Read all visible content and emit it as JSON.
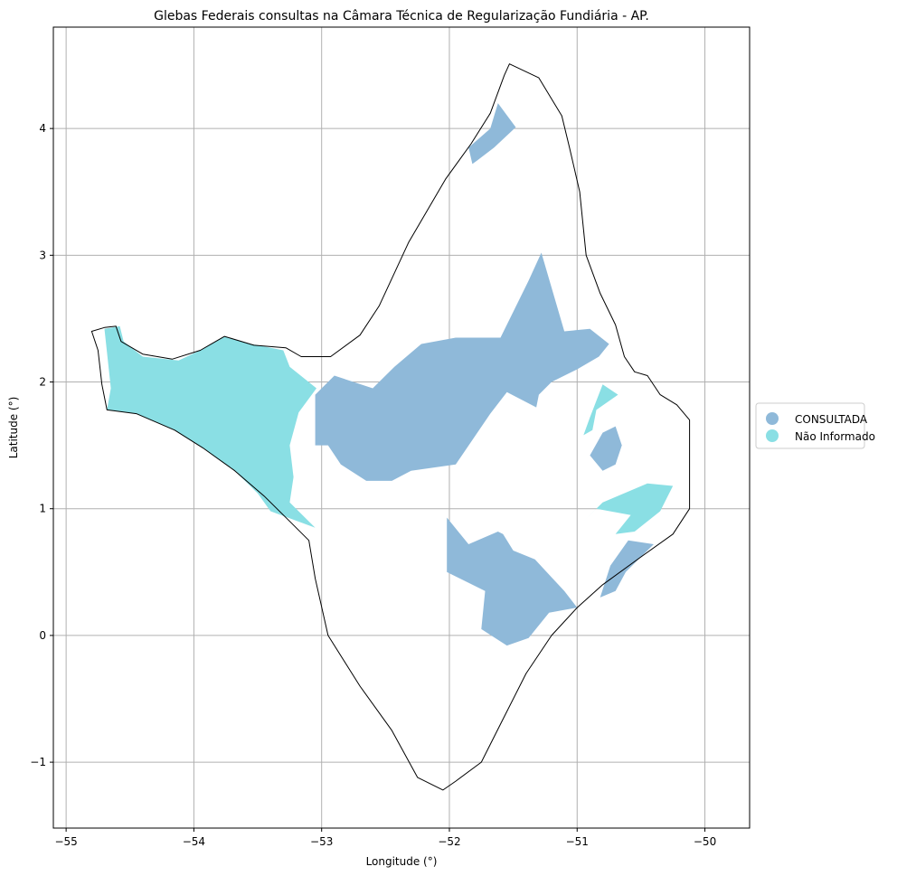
{
  "title": "Glebas Federais consultas na Câmara Técnica de Regularização Fundiária - AP.",
  "xlabel": "Longitude (°)",
  "ylabel": "Latitude (°)",
  "x_ticks": [
    "−55",
    "−54",
    "−53",
    "−52",
    "−51",
    "−50"
  ],
  "y_ticks": [
    "4",
    "3",
    "2",
    "1",
    "0",
    "−1"
  ],
  "legend": [
    {
      "label": "CONSULTADA",
      "color": "#8fb9d9"
    },
    {
      "label": "Não Informado",
      "color": "#8adfe4"
    }
  ],
  "chart_data": {
    "type": "map",
    "xlabel": "Longitude (°)",
    "ylabel": "Latitude (°)",
    "xlim": [
      -55.1,
      -49.65
    ],
    "ylim": [
      -1.52,
      4.8
    ],
    "grid": true,
    "legend_position": "right",
    "categories": [
      "CONSULTADA",
      "Não Informado"
    ],
    "colors": {
      "CONSULTADA": "#8fb9d9",
      "Não Informado": "#8adfe4",
      "outline": "#000000"
    },
    "boundary": [
      [
        -54.7,
        2.43
      ],
      [
        -54.61,
        2.44
      ],
      [
        -54.57,
        2.32
      ],
      [
        -54.4,
        2.22
      ],
      [
        -54.17,
        2.18
      ],
      [
        -53.95,
        2.25
      ],
      [
        -53.76,
        2.36
      ],
      [
        -53.53,
        2.29
      ],
      [
        -53.28,
        2.27
      ],
      [
        -53.16,
        2.2
      ],
      [
        -52.93,
        2.2
      ],
      [
        -52.7,
        2.37
      ],
      [
        -52.55,
        2.6
      ],
      [
        -52.32,
        3.1
      ],
      [
        -52.03,
        3.6
      ],
      [
        -51.83,
        3.88
      ],
      [
        -51.68,
        4.12
      ],
      [
        -51.57,
        4.42
      ],
      [
        -51.53,
        4.51
      ],
      [
        -51.3,
        4.4
      ],
      [
        -51.12,
        4.1
      ],
      [
        -51.06,
        3.85
      ],
      [
        -50.98,
        3.5
      ],
      [
        -50.93,
        3.0
      ],
      [
        -50.82,
        2.7
      ],
      [
        -50.7,
        2.45
      ],
      [
        -50.63,
        2.2
      ],
      [
        -50.55,
        2.08
      ],
      [
        -50.45,
        2.05
      ],
      [
        -50.35,
        1.9
      ],
      [
        -50.22,
        1.82
      ],
      [
        -50.12,
        1.7
      ],
      [
        -50.12,
        1.4
      ],
      [
        -50.12,
        1.0
      ],
      [
        -50.25,
        0.8
      ],
      [
        -50.5,
        0.62
      ],
      [
        -50.8,
        0.4
      ],
      [
        -51.0,
        0.22
      ],
      [
        -51.2,
        0.0
      ],
      [
        -51.4,
        -0.3
      ],
      [
        -51.6,
        -0.7
      ],
      [
        -51.75,
        -1.0
      ],
      [
        -51.95,
        -1.15
      ],
      [
        -52.05,
        -1.22
      ],
      [
        -52.25,
        -1.12
      ],
      [
        -52.45,
        -0.75
      ],
      [
        -52.7,
        -0.4
      ],
      [
        -52.95,
        0.0
      ],
      [
        -53.05,
        0.45
      ],
      [
        -53.1,
        0.75
      ],
      [
        -53.25,
        0.9
      ],
      [
        -53.45,
        1.1
      ],
      [
        -53.68,
        1.3
      ],
      [
        -53.93,
        1.48
      ],
      [
        -54.15,
        1.62
      ],
      [
        -54.45,
        1.75
      ],
      [
        -54.68,
        1.78
      ],
      [
        -54.72,
        1.98
      ],
      [
        -54.75,
        2.25
      ],
      [
        -54.8,
        2.4
      ],
      [
        -54.7,
        2.43
      ]
    ],
    "regions": [
      {
        "category": "CONSULTADA",
        "coords": [
          [
            -51.85,
            3.85
          ],
          [
            -51.68,
            4.0
          ],
          [
            -51.62,
            4.2
          ],
          [
            -51.48,
            4.01
          ],
          [
            -51.65,
            3.85
          ],
          [
            -51.78,
            3.75
          ],
          [
            -51.82,
            3.72
          ]
        ]
      },
      {
        "category": "CONSULTADA",
        "coords": [
          [
            -53.05,
            1.9
          ],
          [
            -52.9,
            2.05
          ],
          [
            -52.6,
            1.95
          ],
          [
            -52.43,
            2.12
          ],
          [
            -52.22,
            2.3
          ],
          [
            -51.95,
            2.35
          ],
          [
            -51.6,
            2.35
          ],
          [
            -51.38,
            2.8
          ],
          [
            -51.28,
            3.02
          ],
          [
            -51.1,
            2.4
          ],
          [
            -50.9,
            2.42
          ],
          [
            -50.75,
            2.3
          ],
          [
            -50.83,
            2.2
          ],
          [
            -51.0,
            2.1
          ],
          [
            -51.2,
            2.0
          ],
          [
            -51.3,
            1.9
          ],
          [
            -51.32,
            1.8
          ],
          [
            -51.55,
            1.92
          ],
          [
            -51.68,
            1.75
          ],
          [
            -51.95,
            1.35
          ],
          [
            -52.3,
            1.3
          ],
          [
            -52.45,
            1.22
          ],
          [
            -52.65,
            1.22
          ],
          [
            -52.85,
            1.35
          ],
          [
            -52.95,
            1.5
          ],
          [
            -53.05,
            1.5
          ]
        ]
      },
      {
        "category": "CONSULTADA",
        "coords": [
          [
            -50.8,
            1.6
          ],
          [
            -50.7,
            1.65
          ],
          [
            -50.65,
            1.5
          ],
          [
            -50.7,
            1.35
          ],
          [
            -50.8,
            1.3
          ],
          [
            -50.9,
            1.42
          ]
        ]
      },
      {
        "category": "CONSULTADA",
        "coords": [
          [
            -52.02,
            0.93
          ],
          [
            -51.85,
            0.72
          ],
          [
            -51.62,
            0.82
          ],
          [
            -51.58,
            0.8
          ],
          [
            -51.5,
            0.67
          ],
          [
            -51.33,
            0.6
          ],
          [
            -51.1,
            0.35
          ],
          [
            -51.0,
            0.22
          ],
          [
            -51.22,
            0.18
          ],
          [
            -51.38,
            -0.02
          ],
          [
            -51.55,
            -0.08
          ],
          [
            -51.75,
            0.05
          ],
          [
            -51.72,
            0.35
          ],
          [
            -52.02,
            0.5
          ]
        ]
      },
      {
        "category": "CONSULTADA",
        "coords": [
          [
            -50.6,
            0.75
          ],
          [
            -50.4,
            0.72
          ],
          [
            -50.62,
            0.5
          ],
          [
            -50.7,
            0.35
          ],
          [
            -50.82,
            0.3
          ],
          [
            -50.74,
            0.55
          ]
        ]
      },
      {
        "category": "Não Informado",
        "coords": [
          [
            -54.7,
            2.42
          ],
          [
            -54.58,
            2.44
          ],
          [
            -54.55,
            2.32
          ],
          [
            -54.4,
            2.2
          ],
          [
            -54.12,
            2.17
          ],
          [
            -53.95,
            2.25
          ],
          [
            -53.76,
            2.36
          ],
          [
            -53.55,
            2.3
          ],
          [
            -53.3,
            2.25
          ],
          [
            -53.25,
            2.12
          ],
          [
            -53.04,
            1.95
          ],
          [
            -53.18,
            1.76
          ],
          [
            -53.25,
            1.5
          ],
          [
            -53.22,
            1.25
          ],
          [
            -53.25,
            1.05
          ],
          [
            -53.05,
            0.85
          ],
          [
            -53.4,
            0.98
          ],
          [
            -53.5,
            1.12
          ],
          [
            -53.68,
            1.3
          ],
          [
            -53.93,
            1.48
          ],
          [
            -54.15,
            1.62
          ],
          [
            -54.45,
            1.75
          ],
          [
            -54.68,
            1.78
          ],
          [
            -54.65,
            1.95
          ]
        ]
      },
      {
        "category": "Não Informado",
        "coords": [
          [
            -50.8,
            1.98
          ],
          [
            -50.68,
            1.9
          ],
          [
            -50.85,
            1.78
          ],
          [
            -50.88,
            1.62
          ],
          [
            -50.95,
            1.58
          ],
          [
            -50.9,
            1.72
          ]
        ]
      },
      {
        "category": "Não Informado",
        "coords": [
          [
            -50.45,
            1.2
          ],
          [
            -50.25,
            1.18
          ],
          [
            -50.35,
            0.98
          ],
          [
            -50.55,
            0.82
          ],
          [
            -50.7,
            0.8
          ],
          [
            -50.58,
            0.95
          ],
          [
            -50.85,
            1.0
          ],
          [
            -50.95,
            0.9
          ],
          [
            -50.8,
            1.05
          ]
        ]
      }
    ]
  }
}
